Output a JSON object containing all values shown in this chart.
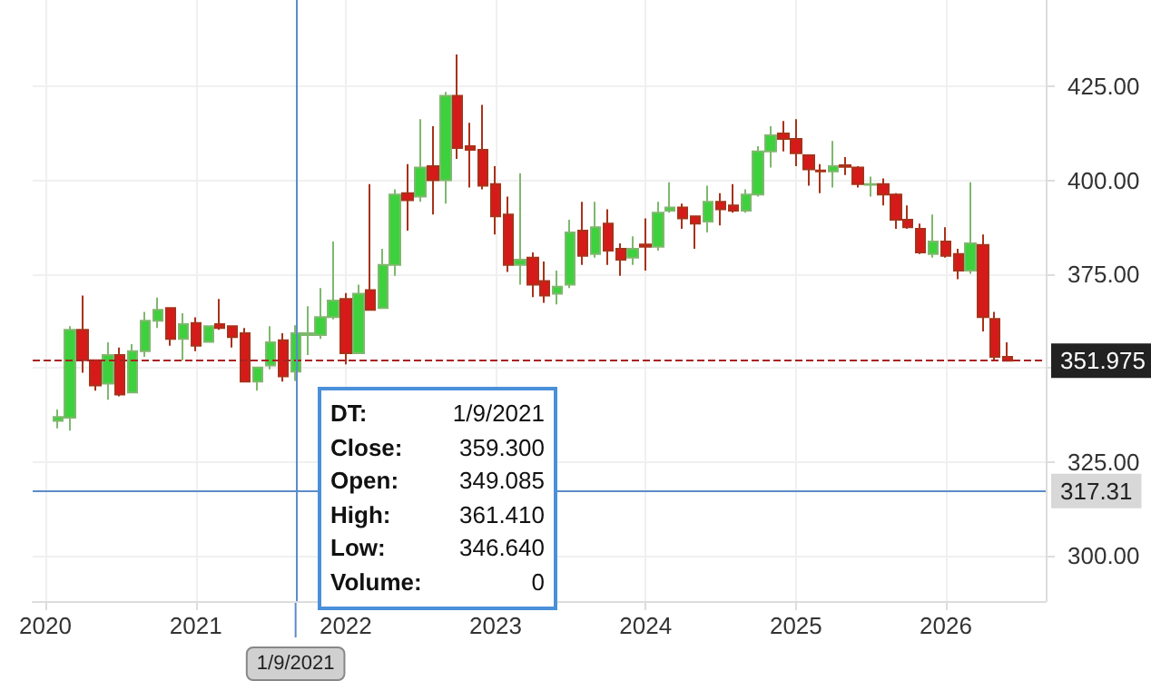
{
  "chart_data": {
    "type": "candlestick",
    "x": [
      "2020-02",
      "2020-03",
      "2020-04",
      "2020-05",
      "2020-06",
      "2020-07",
      "2020-08",
      "2020-09",
      "2020-10",
      "2020-11",
      "2020-12",
      "2021-01",
      "2021-02",
      "2021-03",
      "2021-04",
      "2021-05",
      "2021-06",
      "2021-07",
      "2021-08",
      "2021-09",
      "2021-10",
      "2021-11",
      "2021-12",
      "2022-01",
      "2022-02",
      "2022-03",
      "2022-04",
      "2022-05",
      "2022-06",
      "2022-07",
      "2022-08",
      "2022-09",
      "2022-10",
      "2022-11",
      "2022-12",
      "2023-01",
      "2023-02",
      "2023-03",
      "2023-04",
      "2023-05",
      "2023-06",
      "2023-07",
      "2023-08",
      "2023-09",
      "2023-10",
      "2023-11",
      "2023-12",
      "2024-01",
      "2024-02",
      "2024-03",
      "2024-04",
      "2024-05",
      "2024-06",
      "2024-07",
      "2024-08",
      "2024-09",
      "2024-10",
      "2024-11",
      "2024-12",
      "2025-01",
      "2025-02",
      "2025-03",
      "2025-04",
      "2025-05",
      "2025-06",
      "2025-07",
      "2025-08",
      "2025-09",
      "2025-10",
      "2025-11",
      "2025-12",
      "2026-01",
      "2026-02",
      "2026-03",
      "2026-04",
      "2026-05",
      "2026-06"
    ],
    "ohlc": [
      [
        336,
        339,
        334,
        337
      ],
      [
        336.8,
        361.2,
        333.4,
        360.2
      ],
      [
        360.2,
        369.3,
        348.8,
        352.1
      ],
      [
        352.1,
        352.1,
        344,
        345.4
      ],
      [
        345.9,
        356.9,
        341.6,
        353.5
      ],
      [
        353.5,
        355.5,
        342.5,
        343
      ],
      [
        343.5,
        356.4,
        343.5,
        354.5
      ],
      [
        354.5,
        365,
        353,
        362.6
      ],
      [
        362.6,
        368.8,
        360.7,
        365.5
      ],
      [
        366,
        366,
        356,
        357.8
      ],
      [
        357.8,
        364.6,
        352.1,
        361.7
      ],
      [
        362,
        363.5,
        354.5,
        356
      ],
      [
        357,
        361.2,
        357,
        361.2
      ],
      [
        361.7,
        368.4,
        360.2,
        360.7
      ],
      [
        361.2,
        361.2,
        355.5,
        358.3
      ],
      [
        359.3,
        360.7,
        346.4,
        346.4
      ],
      [
        346.4,
        350.2,
        344,
        350.2
      ],
      [
        350.7,
        361.2,
        349.7,
        356.9
      ],
      [
        357.4,
        359.3,
        346.4,
        347.8
      ],
      [
        349.085,
        361.41,
        346.64,
        359.3
      ],
      [
        358.8,
        366.5,
        353.5,
        359.3
      ],
      [
        358.8,
        371.3,
        357.8,
        363.6
      ],
      [
        363.6,
        383.7,
        363,
        368
      ],
      [
        368.4,
        370,
        351,
        354
      ],
      [
        354,
        372.2,
        354,
        369.8
      ],
      [
        370.8,
        399,
        365.5,
        365.5
      ],
      [
        366,
        381.8,
        366,
        377.5
      ],
      [
        377.5,
        397.6,
        374.6,
        396.2
      ],
      [
        396.6,
        404.3,
        386.6,
        394.7
      ],
      [
        395.7,
        416.3,
        394.3,
        403.4
      ],
      [
        403.8,
        414.4,
        390.9,
        400
      ],
      [
        400,
        423.5,
        393.8,
        422.5
      ],
      [
        422.5,
        433.5,
        405.7,
        408.6
      ],
      [
        409.1,
        415.3,
        398.1,
        408.1
      ],
      [
        408.1,
        420.1,
        397.6,
        398.6
      ],
      [
        399,
        403.8,
        385.6,
        390.4
      ],
      [
        390.9,
        395.7,
        375.6,
        377.5
      ],
      [
        377.5,
        401.9,
        372.2,
        378.9
      ],
      [
        379.4,
        380.8,
        368.9,
        372.2
      ],
      [
        373.2,
        378.4,
        367.4,
        369.3
      ],
      [
        369.8,
        376,
        367,
        371.7
      ],
      [
        372.2,
        389.5,
        371.3,
        386.1
      ],
      [
        386.6,
        394.3,
        377.5,
        379.9
      ],
      [
        380.4,
        394.3,
        379.4,
        387.5
      ],
      [
        388.5,
        392.3,
        377.5,
        381.3
      ],
      [
        381.8,
        383.2,
        374.6,
        378.9
      ],
      [
        379.4,
        385.1,
        377.5,
        381.8
      ],
      [
        382.9,
        389.9,
        376,
        382.3
      ],
      [
        382.3,
        394.3,
        381.3,
        391.4
      ],
      [
        391.9,
        399.5,
        391.4,
        392.8
      ],
      [
        392.8,
        393.8,
        387.1,
        389.9
      ],
      [
        390.4,
        390.4,
        381.8,
        388.5
      ],
      [
        389,
        398.6,
        386.1,
        394.3
      ],
      [
        394.3,
        396.6,
        388,
        392.3
      ],
      [
        393.3,
        399,
        391.4,
        391.9
      ],
      [
        391.9,
        397.6,
        391.4,
        396.2
      ],
      [
        396.2,
        409.1,
        395.7,
        407.7
      ],
      [
        407.7,
        414.4,
        403.4,
        412
      ],
      [
        412.5,
        415.8,
        407.7,
        411
      ],
      [
        411,
        416.3,
        403.8,
        407.2
      ],
      [
        406.7,
        406.7,
        398.6,
        402.9
      ],
      [
        402.6,
        404.3,
        396.6,
        402.4
      ],
      [
        402.4,
        410.5,
        398.1,
        403.8
      ],
      [
        404,
        406.2,
        401.4,
        403.6
      ],
      [
        403.4,
        403.8,
        398.1,
        399
      ],
      [
        398.8,
        401,
        395.7,
        399
      ],
      [
        399,
        400.5,
        393.3,
        396.2
      ],
      [
        396.2,
        396.6,
        387.1,
        389.5
      ],
      [
        389.5,
        393.3,
        387.1,
        387.5
      ],
      [
        387.1,
        388.5,
        380.4,
        380.8
      ],
      [
        380.4,
        390.9,
        379.4,
        383.7
      ],
      [
        383.7,
        387.5,
        379.4,
        379.9
      ],
      [
        380.4,
        381.8,
        373.7,
        376
      ],
      [
        376,
        399.5,
        375.1,
        383.2
      ],
      [
        382.8,
        385.6,
        359.8,
        363.6
      ],
      [
        363.1,
        365,
        352.1,
        353
      ],
      [
        353,
        356.9,
        351.975,
        351.975
      ]
    ],
    "xlim": [
      "2019-12-01",
      "2026-09-01"
    ],
    "xticks": [
      {
        "value": "2020-01-01",
        "label": "2020"
      },
      {
        "value": "2021-01-01",
        "label": "2021"
      },
      {
        "value": "2022-01-01",
        "label": "2022"
      },
      {
        "value": "2023-01-01",
        "label": "2023"
      },
      {
        "value": "2024-01-01",
        "label": "2024"
      },
      {
        "value": "2025-01-01",
        "label": "2025"
      },
      {
        "value": "2026-01-01",
        "label": "2026"
      }
    ],
    "ylim": [
      288,
      448
    ],
    "yticks": [
      {
        "value": 300,
        "label": "300.00"
      },
      {
        "value": 325,
        "label": "325.00"
      },
      {
        "value": 350,
        "label": null
      },
      {
        "value": 375,
        "label": "375.00"
      },
      {
        "value": 400,
        "label": "400.00"
      },
      {
        "value": 425,
        "label": "425.00"
      }
    ],
    "grid": true,
    "ref_lines": [
      {
        "axis": "y",
        "value": 351.975,
        "label": "351.975",
        "color": "#aa2222",
        "line_style": "dashed"
      },
      {
        "axis": "y",
        "value": 317.31,
        "label": "317.31",
        "color": "#5b8cc9",
        "line_style": "solid"
      },
      {
        "axis": "x",
        "value": "2021-09",
        "label": "1/9/2021",
        "color": "#5b8cc9",
        "line_style": "solid"
      }
    ],
    "annotations": [
      "DT: 1/9/2021",
      "Close: 359.300",
      "Open: 349.085",
      "High: 361.410",
      "Low: 346.640",
      "Volume: 0"
    ]
  }
}
